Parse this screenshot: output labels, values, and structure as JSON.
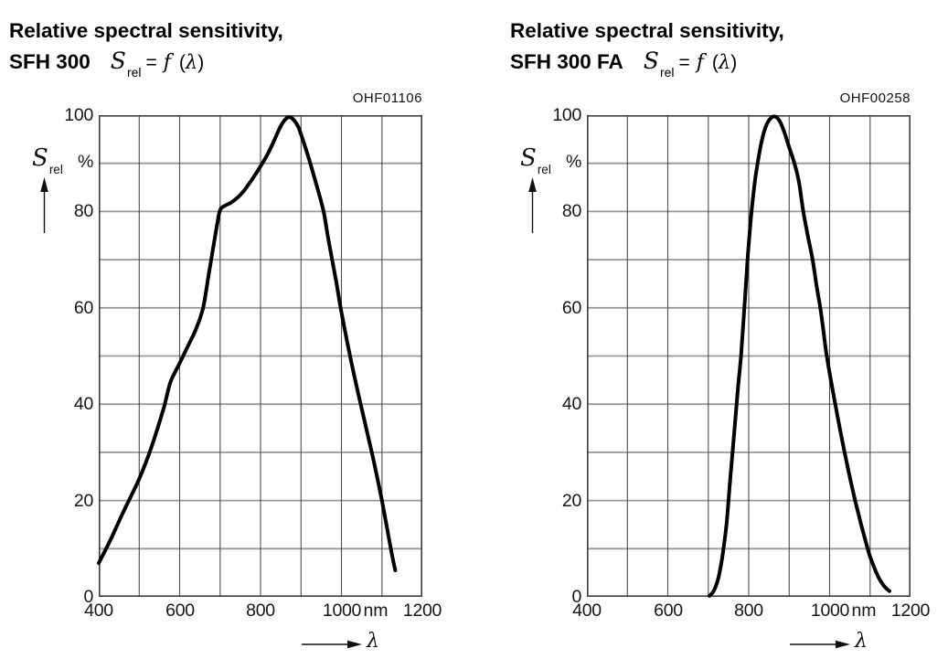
{
  "accent_colors": {
    "curve": "#000000",
    "grid_horizontal": "#979797",
    "grid_vertical": "#4d4d4d",
    "frame": "#3c3c3c",
    "text": "#000000"
  },
  "chart_data": [
    {
      "type": "line",
      "title_line1": "Relative spectral sensitivity,",
      "model": "SFH 300",
      "formula": {
        "lhs": "S",
        "lhs_sub": "rel",
        "equals": "=",
        "func": "f",
        "arg_open": "(",
        "lambda": "λ",
        "arg_close": ")"
      },
      "plot_code": "OHF01106",
      "y_symbol": "S",
      "y_symbol_sub": "rel",
      "y_unit": "%",
      "x_unit": "nm",
      "x_symbol": "λ",
      "xlim": [
        400,
        1200
      ],
      "ylim": [
        0,
        100
      ],
      "x_grid_step": 100,
      "y_grid_step": 10,
      "x_ticks": [
        400,
        600,
        800,
        1000,
        1200
      ],
      "y_ticks": [
        100,
        80,
        60,
        40,
        20,
        0
      ],
      "grid": true,
      "series": [
        {
          "name": "SFH 300 relative spectral sensitivity",
          "points": [
            [
              400,
              7
            ],
            [
              430,
              12
            ],
            [
              460,
              17.5
            ],
            [
              500,
              24.5
            ],
            [
              530,
              31
            ],
            [
              560,
              39
            ],
            [
              577,
              44.5
            ],
            [
              600,
              48.5
            ],
            [
              620,
              52
            ],
            [
              640,
              55.5
            ],
            [
              658,
              60
            ],
            [
              672,
              67
            ],
            [
              683,
              72.5
            ],
            [
              692,
              77
            ],
            [
              700,
              80.3
            ],
            [
              712,
              81.2
            ],
            [
              726,
              81.8
            ],
            [
              742,
              82.8
            ],
            [
              758,
              84.2
            ],
            [
              772,
              85.8
            ],
            [
              788,
              87.8
            ],
            [
              803,
              89.8
            ],
            [
              818,
              92
            ],
            [
              833,
              94.6
            ],
            [
              848,
              97.4
            ],
            [
              860,
              99
            ],
            [
              870,
              99.6
            ],
            [
              880,
              99.2
            ],
            [
              893,
              97.6
            ],
            [
              908,
              94
            ],
            [
              923,
              90
            ],
            [
              940,
              85
            ],
            [
              956,
              80
            ],
            [
              966,
              75
            ],
            [
              977,
              70
            ],
            [
              988,
              65
            ],
            [
              998,
              60
            ],
            [
              1020,
              50.5
            ],
            [
              1046,
              40.5
            ],
            [
              1075,
              30
            ],
            [
              1100,
              20
            ],
            [
              1122,
              10
            ],
            [
              1133,
              5.5
            ]
          ]
        }
      ]
    },
    {
      "type": "line",
      "title_line1": "Relative spectral sensitivity,",
      "model": "SFH 300 FA",
      "formula": {
        "lhs": "S",
        "lhs_sub": "rel",
        "equals": "=",
        "func": "f",
        "arg_open": "(",
        "lambda": "λ",
        "arg_close": ")"
      },
      "plot_code": "OHF00258",
      "y_symbol": "S",
      "y_symbol_sub": "rel",
      "y_unit": "%",
      "x_unit": "nm",
      "x_symbol": "λ",
      "xlim": [
        400,
        1200
      ],
      "ylim": [
        0,
        100
      ],
      "x_grid_step": 100,
      "y_grid_step": 10,
      "x_ticks": [
        400,
        600,
        800,
        1000,
        1200
      ],
      "y_ticks": [
        100,
        80,
        60,
        40,
        20,
        0
      ],
      "grid": true,
      "series": [
        {
          "name": "SFH 300 FA relative spectral sensitivity",
          "points": [
            [
              703,
              0.2
            ],
            [
              712,
              1
            ],
            [
              720,
              2.5
            ],
            [
              728,
              5
            ],
            [
              736,
              9
            ],
            [
              745,
              15
            ],
            [
              754,
              24
            ],
            [
              764,
              34
            ],
            [
              773,
              43
            ],
            [
              781,
              50
            ],
            [
              790,
              61
            ],
            [
              798,
              71
            ],
            [
              807,
              80
            ],
            [
              815,
              86
            ],
            [
              822,
              90
            ],
            [
              832,
              94.6
            ],
            [
              843,
              97.8
            ],
            [
              855,
              99.4
            ],
            [
              866,
              99.7
            ],
            [
              877,
              98.7
            ],
            [
              888,
              96.5
            ],
            [
              900,
              93.3
            ],
            [
              913,
              90
            ],
            [
              924,
              86.2
            ],
            [
              935,
              80
            ],
            [
              946,
              75
            ],
            [
              958,
              70
            ],
            [
              968,
              64.5
            ],
            [
              977,
              60
            ],
            [
              985,
              55
            ],
            [
              993,
              50
            ],
            [
              1014,
              40
            ],
            [
              1037,
              30
            ],
            [
              1063,
              20
            ],
            [
              1094,
              10
            ],
            [
              1106,
              7
            ],
            [
              1120,
              4.2
            ],
            [
              1135,
              2.2
            ],
            [
              1148,
              1.2
            ]
          ]
        }
      ]
    }
  ]
}
